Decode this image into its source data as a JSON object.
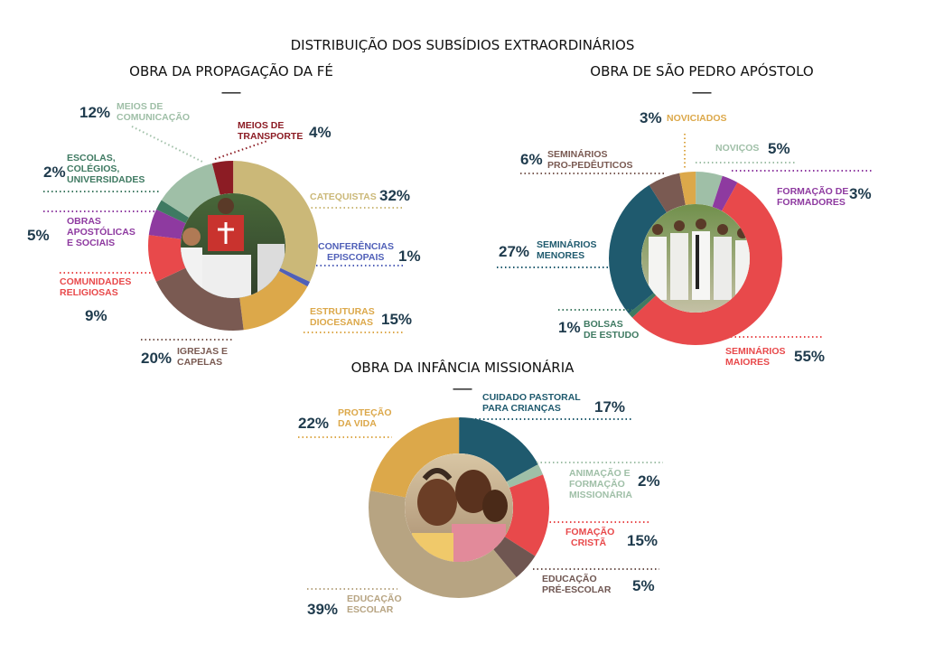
{
  "page_title": "DISTRIBUIÇÃO DOS SUBSÍDIOS EXTRAORDINÁRIOS",
  "chart_data": [
    {
      "type": "donut",
      "title": "OBRA DA PROPAGAÇÃO DA FÉ",
      "underline": "___",
      "image": "procession-photo",
      "slices": [
        {
          "label": "CATEQUISTAS",
          "value": 32,
          "pct_text": "32%",
          "color": "#cbb878"
        },
        {
          "label": "CONFERÊNCIAS EPISCOPAIS",
          "value": 1,
          "pct_text": "1%",
          "color": "#5060b8"
        },
        {
          "label": "ESTRUTURAS DIOCESANAS",
          "value": 15,
          "pct_text": "15%",
          "color": "#dca84a"
        },
        {
          "label": "IGREJAS E CAPELAS",
          "value": 20,
          "pct_text": "20%",
          "color": "#7a5a52"
        },
        {
          "label": "COMUNIDADES RELIGIOSAS",
          "value": 9,
          "pct_text": "9%",
          "color": "#e8494b"
        },
        {
          "label": "OBRAS APOSTÓLICAS E SOCIAIS",
          "value": 5,
          "pct_text": "5%",
          "color": "#8e3aa0"
        },
        {
          "label": "ESCOLAS, COLÉGIOS, UNIVERSIDADES",
          "value": 2,
          "pct_text": "2%",
          "color": "#3f7a62"
        },
        {
          "label": "MEIOS DE COMUNICAÇÃO",
          "value": 12,
          "pct_text": "12%",
          "color": "#9fbfa7"
        },
        {
          "label": "MEIOS DE TRANSPORTE",
          "value": 4,
          "pct_text": "4%",
          "color": "#8c1c24"
        }
      ]
    },
    {
      "type": "donut",
      "title": "OBRA DE SÃO PEDRO APÓSTOLO",
      "underline": "___",
      "image": "seminarians-photo",
      "slices": [
        {
          "label": "NOVIÇOS",
          "value": 5,
          "pct_text": "5%",
          "color": "#9fbfa7"
        },
        {
          "label": "FORMAÇÃO DE FORMADORES",
          "value": 3,
          "pct_text": "3%",
          "color": "#8e3aa0"
        },
        {
          "label": "SEMINÁRIOS MAIORES",
          "value": 55,
          "pct_text": "55%",
          "color": "#e8494b"
        },
        {
          "label": "BOLSAS DE ESTUDO",
          "value": 1,
          "pct_text": "1%",
          "color": "#3f7a62"
        },
        {
          "label": "SEMINÁRIOS MENORES",
          "value": 27,
          "pct_text": "27%",
          "color": "#1f5a6e"
        },
        {
          "label": "SEMINÁRIOS PRO-PEDÊUTICOS",
          "value": 6,
          "pct_text": "6%",
          "color": "#7a5a52"
        },
        {
          "label": "NOVICIADOS",
          "value": 3,
          "pct_text": "3%",
          "color": "#dca84a"
        }
      ]
    },
    {
      "type": "donut",
      "title": "OBRA DA INFÂNCIA MISSIONÁRIA",
      "underline": "___",
      "image": "children-photo",
      "slices": [
        {
          "label": "CUIDADO PASTORAL PARA CRIANÇAS",
          "value": 17,
          "pct_text": "17%",
          "color": "#1f5a6e"
        },
        {
          "label": "ANIMAÇÃO E FORMAÇÃO MISSIONÁRIA",
          "value": 2,
          "pct_text": "2%",
          "color": "#9fbfa7"
        },
        {
          "label": "FOMAÇÃO CRISTÃ",
          "value": 15,
          "pct_text": "15%",
          "color": "#e8494b"
        },
        {
          "label": "EDUCAÇÃO PRÉ-ESCOLAR",
          "value": 5,
          "pct_text": "5%",
          "color": "#6f5651"
        },
        {
          "label": "EDUCAÇÃO ESCOLAR",
          "value": 39,
          "pct_text": "39%",
          "color": "#b7a482"
        },
        {
          "label": "PROTEÇÃO DA VIDA",
          "value": 22,
          "pct_text": "22%",
          "color": "#dca84a"
        }
      ]
    }
  ]
}
